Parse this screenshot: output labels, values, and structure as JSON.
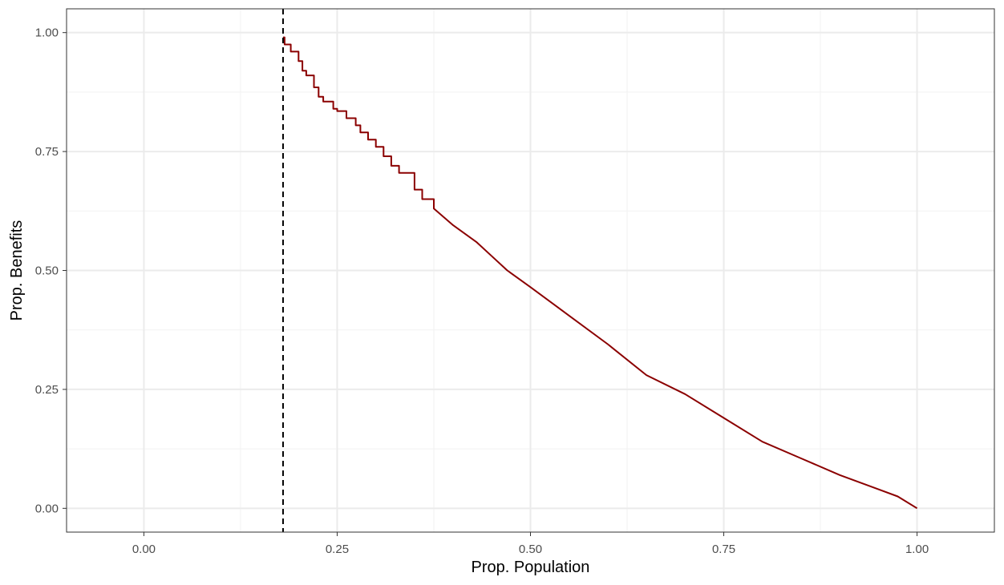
{
  "chart_data": {
    "type": "line",
    "title": "",
    "xlabel": "Prop. Population",
    "ylabel": "Prop. Benefits",
    "xlim": [
      -0.1,
      1.1
    ],
    "ylim": [
      -0.05,
      1.05
    ],
    "x_ticks": [
      0,
      0.25,
      0.5,
      0.75,
      1
    ],
    "x_tick_labels": [
      "0.00",
      "0.25",
      "0.50",
      "0.75",
      "1.00"
    ],
    "y_ticks": [
      0,
      0.25,
      0.5,
      0.75,
      1
    ],
    "y_tick_labels": [
      "0.00",
      "0.25",
      "0.50",
      "0.75",
      "1.00"
    ],
    "grid": true,
    "theme": "white background, light gray major and minor grid, black panel border",
    "reference_line": {
      "type": "vertical",
      "x": 0.18,
      "style": "dashed",
      "color": "#000000"
    },
    "series": [
      {
        "color": "#8b0000",
        "x": [
          0.18,
          0.182,
          0.19,
          0.2,
          0.205,
          0.21,
          0.22,
          0.226,
          0.232,
          0.245,
          0.25,
          0.262,
          0.274,
          0.28,
          0.29,
          0.3,
          0.31,
          0.32,
          0.33,
          0.35,
          0.36,
          0.375,
          0.4,
          0.43,
          0.45,
          0.47,
          0.5,
          0.55,
          0.6,
          0.65,
          0.7,
          0.75,
          0.8,
          0.85,
          0.9,
          0.95,
          0.975,
          1.0
        ],
        "y": [
          0.99,
          0.975,
          0.96,
          0.94,
          0.92,
          0.91,
          0.885,
          0.865,
          0.855,
          0.84,
          0.835,
          0.82,
          0.805,
          0.79,
          0.775,
          0.76,
          0.74,
          0.72,
          0.705,
          0.67,
          0.65,
          0.63,
          0.595,
          0.56,
          0.53,
          0.5,
          0.465,
          0.405,
          0.345,
          0.28,
          0.24,
          0.19,
          0.14,
          0.105,
          0.07,
          0.04,
          0.025,
          0.0
        ]
      }
    ]
  }
}
